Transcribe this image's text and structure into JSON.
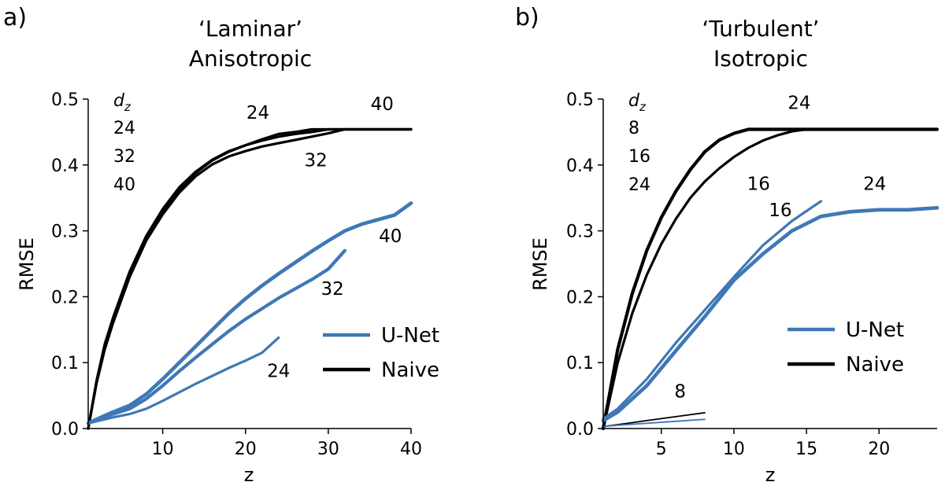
{
  "colors": {
    "unet": "#3f78b5",
    "naive": "#000000"
  },
  "legend": {
    "unet_label": "U-Net",
    "naive_label": "Naive"
  },
  "chart_data": [
    {
      "type": "line",
      "panel_label": "a)",
      "title_line1": "‘Laminar’",
      "title_line2": "Anisotropic",
      "xlabel": "z",
      "ylabel": "RMSE",
      "xlim": [
        1,
        40
      ],
      "ylim": [
        0,
        0.5
      ],
      "xticks": [
        10,
        20,
        30,
        40
      ],
      "xtick_labels": [
        "10",
        "20",
        "30",
        "40"
      ],
      "yticks": [
        0.0,
        0.1,
        0.2,
        0.3,
        0.4,
        0.5
      ],
      "ytick_labels": [
        "0.0",
        "0.1",
        "0.2",
        "0.3",
        "0.4",
        "0.5"
      ],
      "dz_header": "dz",
      "dz_values": [
        "24",
        "32",
        "40"
      ],
      "series": [
        {
          "name": "Naive d_z=24",
          "model": "naive",
          "width": 3.2,
          "x": [
            1,
            2,
            3,
            4,
            6,
            8,
            10,
            12,
            14,
            16,
            18,
            20,
            22,
            24,
            26,
            28,
            30,
            32,
            34,
            36,
            38,
            40
          ],
          "y": [
            0.0,
            0.07,
            0.125,
            0.165,
            0.235,
            0.29,
            0.33,
            0.363,
            0.388,
            0.407,
            0.42,
            0.43,
            0.439,
            0.447,
            0.45,
            0.454,
            0.454,
            0.454,
            0.454,
            0.454,
            0.454,
            0.454
          ]
        },
        {
          "name": "Naive d_z=32",
          "model": "naive",
          "width": 3.2,
          "x": [
            1,
            2,
            3,
            4,
            6,
            8,
            10,
            12,
            14,
            16,
            18,
            20,
            22,
            24,
            26,
            28,
            30,
            32,
            34,
            36,
            38,
            40
          ],
          "y": [
            0.0,
            0.068,
            0.12,
            0.16,
            0.23,
            0.285,
            0.325,
            0.358,
            0.383,
            0.401,
            0.413,
            0.421,
            0.428,
            0.433,
            0.438,
            0.443,
            0.448,
            0.454,
            0.454,
            0.454,
            0.454,
            0.454
          ]
        },
        {
          "name": "Naive d_z=40",
          "model": "naive",
          "width": 3.2,
          "x": [
            1,
            2,
            3,
            4,
            6,
            8,
            10,
            12,
            14,
            16,
            18,
            20,
            22,
            24,
            26,
            28,
            30,
            32,
            34,
            36,
            38,
            40
          ],
          "y": [
            0.0,
            0.072,
            0.128,
            0.168,
            0.238,
            0.292,
            0.333,
            0.366,
            0.39,
            0.408,
            0.421,
            0.43,
            0.437,
            0.443,
            0.447,
            0.45,
            0.454,
            0.454,
            0.454,
            0.454,
            0.454,
            0.454
          ]
        },
        {
          "name": "U-Net d_z=24",
          "model": "unet",
          "width": 3.2,
          "x": [
            1,
            2,
            4,
            6,
            8,
            10,
            12,
            14,
            16,
            18,
            20,
            22,
            24
          ],
          "y": [
            0.008,
            0.011,
            0.017,
            0.022,
            0.03,
            0.042,
            0.055,
            0.068,
            0.08,
            0.092,
            0.103,
            0.115,
            0.138
          ]
        },
        {
          "name": "U-Net d_z=32",
          "model": "unet",
          "width": 4.2,
          "x": [
            1,
            2,
            4,
            6,
            8,
            10,
            12,
            14,
            16,
            18,
            20,
            22,
            24,
            26,
            28,
            30,
            32
          ],
          "y": [
            0.008,
            0.013,
            0.022,
            0.03,
            0.045,
            0.065,
            0.087,
            0.108,
            0.128,
            0.148,
            0.166,
            0.182,
            0.198,
            0.212,
            0.226,
            0.242,
            0.27
          ]
        },
        {
          "name": "U-Net d_z=40",
          "model": "unet",
          "width": 4.6,
          "x": [
            1,
            2,
            4,
            6,
            8,
            10,
            12,
            14,
            16,
            18,
            20,
            22,
            24,
            26,
            28,
            30,
            32,
            34,
            36,
            38,
            40
          ],
          "y": [
            0.008,
            0.014,
            0.025,
            0.035,
            0.052,
            0.075,
            0.1,
            0.125,
            0.15,
            0.175,
            0.197,
            0.217,
            0.235,
            0.252,
            0.269,
            0.285,
            0.3,
            0.31,
            0.317,
            0.324,
            0.342
          ]
        }
      ],
      "annotations": [
        {
          "text": "24",
          "x": 21.5,
          "y": 0.47
        },
        {
          "text": "40",
          "x": 36.5,
          "y": 0.483
        },
        {
          "text": "32",
          "x": 28.5,
          "y": 0.398
        },
        {
          "text": "40",
          "x": 37.5,
          "y": 0.283
        },
        {
          "text": "32",
          "x": 30.5,
          "y": 0.203
        },
        {
          "text": "24",
          "x": 24,
          "y": 0.078
        }
      ]
    },
    {
      "type": "line",
      "panel_label": "b)",
      "title_line1": "‘Turbulent’",
      "title_line2": "Isotropic",
      "xlabel": "z",
      "ylabel": "RMSE",
      "xlim": [
        1,
        24
      ],
      "ylim": [
        0,
        0.5
      ],
      "xticks": [
        5,
        10,
        15,
        20
      ],
      "xtick_labels": [
        "5",
        "10",
        "15",
        "20"
      ],
      "yticks": [
        0.0,
        0.1,
        0.2,
        0.3,
        0.4,
        0.5
      ],
      "ytick_labels": [
        "0.0",
        "0.1",
        "0.2",
        "0.3",
        "0.4",
        "0.5"
      ],
      "dz_header": "dz",
      "dz_values": [
        "8",
        "16",
        "24"
      ],
      "series": [
        {
          "name": "Naive d_z=24",
          "model": "naive",
          "width": 4.2,
          "x": [
            1,
            2,
            3,
            4,
            5,
            6,
            7,
            8,
            9,
            10,
            11,
            12,
            14,
            16,
            18,
            20,
            22,
            24
          ],
          "y": [
            0.0,
            0.12,
            0.205,
            0.27,
            0.32,
            0.36,
            0.393,
            0.42,
            0.438,
            0.448,
            0.454,
            0.454,
            0.454,
            0.454,
            0.454,
            0.454,
            0.454,
            0.454
          ]
        },
        {
          "name": "Naive d_z=16",
          "model": "naive",
          "width": 3.2,
          "x": [
            1,
            2,
            3,
            4,
            5,
            6,
            7,
            8,
            9,
            10,
            11,
            12,
            13,
            14,
            15,
            16
          ],
          "y": [
            0.0,
            0.1,
            0.175,
            0.233,
            0.28,
            0.318,
            0.35,
            0.375,
            0.395,
            0.412,
            0.426,
            0.437,
            0.445,
            0.451,
            0.454,
            0.454
          ]
        },
        {
          "name": "Naive d_z=8",
          "model": "naive",
          "width": 1.8,
          "x": [
            1,
            2,
            3,
            4,
            5,
            6,
            7,
            8
          ],
          "y": [
            0.003,
            0.006,
            0.009,
            0.012,
            0.015,
            0.018,
            0.021,
            0.024
          ]
        },
        {
          "name": "U-Net d_z=8",
          "model": "unet",
          "width": 1.8,
          "x": [
            1,
            2,
            4,
            6,
            8
          ],
          "y": [
            0.003,
            0.005,
            0.008,
            0.011,
            0.014
          ]
        },
        {
          "name": "U-Net d_z=16",
          "model": "unet",
          "width": 3.2,
          "x": [
            1,
            2,
            4,
            6,
            8,
            10,
            12,
            14,
            16
          ],
          "y": [
            0.015,
            0.03,
            0.075,
            0.13,
            0.18,
            0.23,
            0.278,
            0.315,
            0.345
          ]
        },
        {
          "name": "U-Net d_z=24",
          "model": "unet",
          "width": 4.6,
          "x": [
            1,
            2,
            4,
            6,
            8,
            10,
            12,
            14,
            16,
            18,
            20,
            22,
            24
          ],
          "y": [
            0.012,
            0.025,
            0.065,
            0.118,
            0.17,
            0.225,
            0.265,
            0.3,
            0.322,
            0.329,
            0.332,
            0.332,
            0.335
          ]
        }
      ],
      "annotations": [
        {
          "text": "24",
          "x": 14.5,
          "y": 0.485
        },
        {
          "text": "16",
          "x": 11.7,
          "y": 0.362
        },
        {
          "text": "16",
          "x": 13.2,
          "y": 0.322
        },
        {
          "text": "24",
          "x": 19.7,
          "y": 0.362
        },
        {
          "text": "8",
          "x": 6.3,
          "y": 0.047
        }
      ]
    }
  ]
}
